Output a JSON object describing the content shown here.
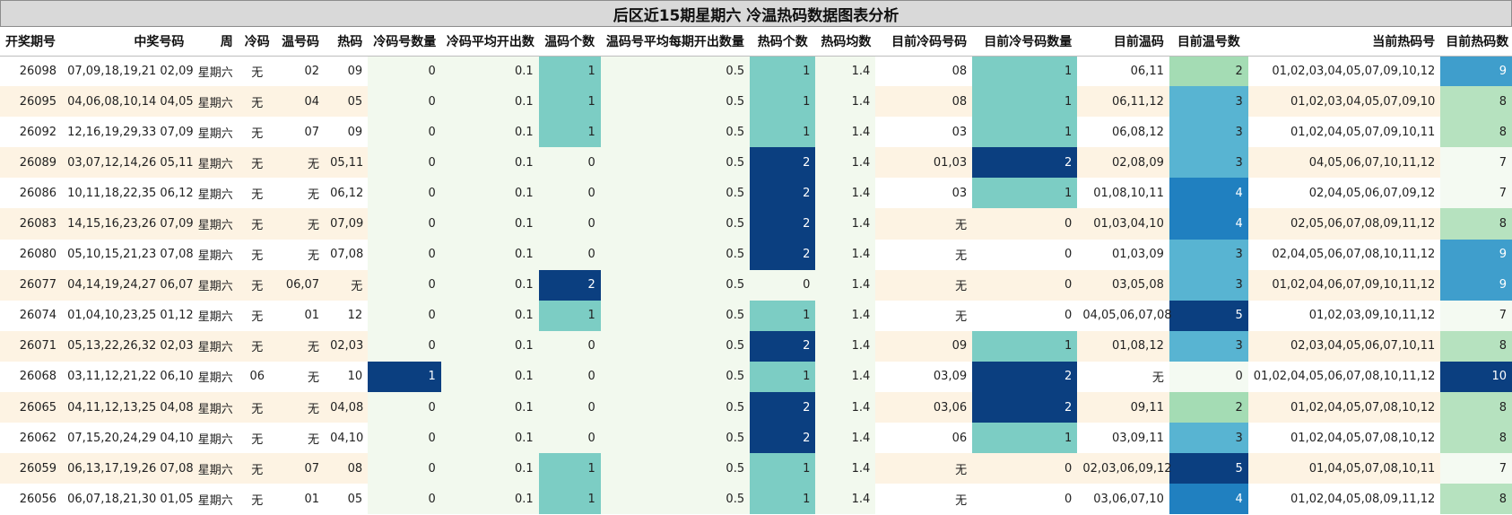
{
  "title": "后区近15期星期六 冷温热码数据图表分析",
  "columns": [
    "开奖期号",
    "中奖号码",
    "周",
    "冷码",
    "温号码",
    "热码",
    "冷码号数量",
    "冷码平均开出数",
    "温码个数",
    "温码号平均每期开出数量",
    "热码个数",
    "热码均数",
    "目前冷码号码",
    "目前冷号码数量",
    "目前温码",
    "目前温号数",
    "当前热码号",
    "目前热码数"
  ],
  "rows": [
    [
      "26098",
      "07,09,18,19,21 02,09",
      "星期六",
      "无",
      "02",
      "09",
      "0",
      "0.1",
      "1",
      "0.5",
      "1",
      "1.4",
      "08",
      "1",
      "06,11",
      "2",
      "01,02,03,04,05,07,09,10,12",
      "9"
    ],
    [
      "26095",
      "04,06,08,10,14 04,05",
      "星期六",
      "无",
      "04",
      "05",
      "0",
      "0.1",
      "1",
      "0.5",
      "1",
      "1.4",
      "08",
      "1",
      "06,11,12",
      "3",
      "01,02,03,04,05,07,09,10",
      "8"
    ],
    [
      "26092",
      "12,16,19,29,33 07,09",
      "星期六",
      "无",
      "07",
      "09",
      "0",
      "0.1",
      "1",
      "0.5",
      "1",
      "1.4",
      "03",
      "1",
      "06,08,12",
      "3",
      "01,02,04,05,07,09,10,11",
      "8"
    ],
    [
      "26089",
      "03,07,12,14,26 05,11",
      "星期六",
      "无",
      "无",
      "05,11",
      "0",
      "0.1",
      "0",
      "0.5",
      "2",
      "1.4",
      "01,03",
      "2",
      "02,08,09",
      "3",
      "04,05,06,07,10,11,12",
      "7"
    ],
    [
      "26086",
      "10,11,18,22,35 06,12",
      "星期六",
      "无",
      "无",
      "06,12",
      "0",
      "0.1",
      "0",
      "0.5",
      "2",
      "1.4",
      "03",
      "1",
      "01,08,10,11",
      "4",
      "02,04,05,06,07,09,12",
      "7"
    ],
    [
      "26083",
      "14,15,16,23,26 07,09",
      "星期六",
      "无",
      "无",
      "07,09",
      "0",
      "0.1",
      "0",
      "0.5",
      "2",
      "1.4",
      "无",
      "0",
      "01,03,04,10",
      "4",
      "02,05,06,07,08,09,11,12",
      "8"
    ],
    [
      "26080",
      "05,10,15,21,23 07,08",
      "星期六",
      "无",
      "无",
      "07,08",
      "0",
      "0.1",
      "0",
      "0.5",
      "2",
      "1.4",
      "无",
      "0",
      "01,03,09",
      "3",
      "02,04,05,06,07,08,10,11,12",
      "9"
    ],
    [
      "26077",
      "04,14,19,24,27 06,07",
      "星期六",
      "无",
      "06,07",
      "无",
      "0",
      "0.1",
      "2",
      "0.5",
      "0",
      "1.4",
      "无",
      "0",
      "03,05,08",
      "3",
      "01,02,04,06,07,09,10,11,12",
      "9"
    ],
    [
      "26074",
      "01,04,10,23,25 01,12",
      "星期六",
      "无",
      "01",
      "12",
      "0",
      "0.1",
      "1",
      "0.5",
      "1",
      "1.4",
      "无",
      "0",
      "04,05,06,07,08",
      "5",
      "01,02,03,09,10,11,12",
      "7"
    ],
    [
      "26071",
      "05,13,22,26,32 02,03",
      "星期六",
      "无",
      "无",
      "02,03",
      "0",
      "0.1",
      "0",
      "0.5",
      "2",
      "1.4",
      "09",
      "1",
      "01,08,12",
      "3",
      "02,03,04,05,06,07,10,11",
      "8"
    ],
    [
      "26068",
      "03,11,12,21,22 06,10",
      "星期六",
      "06",
      "无",
      "10",
      "1",
      "0.1",
      "0",
      "0.5",
      "1",
      "1.4",
      "03,09",
      "2",
      "无",
      "0",
      "01,02,04,05,06,07,08,10,11,12",
      "10"
    ],
    [
      "26065",
      "04,11,12,13,25 04,08",
      "星期六",
      "无",
      "无",
      "04,08",
      "0",
      "0.1",
      "0",
      "0.5",
      "2",
      "1.4",
      "03,06",
      "2",
      "09,11",
      "2",
      "01,02,04,05,07,08,10,12",
      "8"
    ],
    [
      "26062",
      "07,15,20,24,29 04,10",
      "星期六",
      "无",
      "无",
      "04,10",
      "0",
      "0.1",
      "0",
      "0.5",
      "2",
      "1.4",
      "06",
      "1",
      "03,09,11",
      "3",
      "01,02,04,05,07,08,10,12",
      "8"
    ],
    [
      "26059",
      "06,13,17,19,26 07,08",
      "星期六",
      "无",
      "07",
      "08",
      "0",
      "0.1",
      "1",
      "0.5",
      "1",
      "1.4",
      "无",
      "0",
      "02,03,06,09,12",
      "5",
      "01,04,05,07,08,10,11",
      "7"
    ],
    [
      "26056",
      "06,07,18,21,30 01,05",
      "星期六",
      "无",
      "01",
      "05",
      "0",
      "0.1",
      "1",
      "0.5",
      "1",
      "1.4",
      "无",
      "0",
      "03,06,07,10",
      "4",
      "01,02,04,05,08,09,11,12",
      "8"
    ]
  ],
  "colors": {
    "row_alt": "#fdf3e3",
    "row_plain": "#ffffff",
    "pale_green": "#f2f9ee",
    "teal_light": "#7ccdc4",
    "navy": "#0b3f80",
    "mint": "#a4dcb4",
    "blue_mid": "#58b4d2",
    "blue_deep": "#2080c0",
    "hot_pale": "#f4faf2",
    "hot_green": "#b6e2bf",
    "hot_blue": "#3f9ecc"
  }
}
